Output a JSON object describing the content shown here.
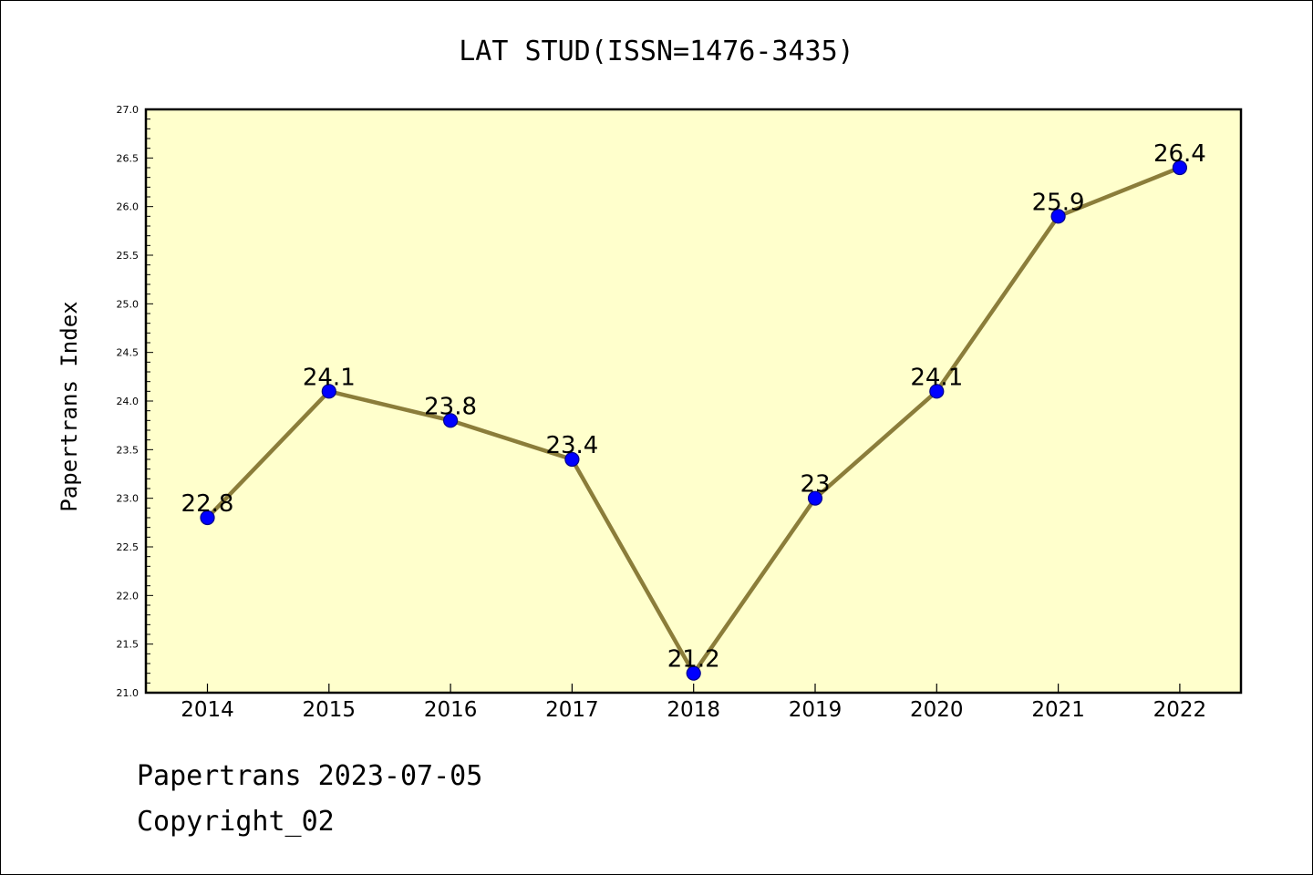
{
  "chart_data": {
    "type": "line",
    "title": "LAT STUD(ISSN=1476-3435)",
    "xlabel": "",
    "ylabel": "Papertrans Index",
    "categories": [
      "2014",
      "2015",
      "2016",
      "2017",
      "2018",
      "2019",
      "2020",
      "2021",
      "2022"
    ],
    "values": [
      22.8,
      24.1,
      23.8,
      23.4,
      21.2,
      23,
      24.1,
      25.9,
      26.4
    ],
    "data_labels": [
      "22.8",
      "24.1",
      "23.8",
      "23.4",
      "21.2",
      "23",
      "24.1",
      "25.9",
      "26.4"
    ],
    "ylim": [
      21.0,
      27.0
    ],
    "yticks": [
      "21.0",
      "21.5",
      "22.0",
      "22.5",
      "23.0",
      "23.5",
      "24.0",
      "24.5",
      "25.0",
      "25.5",
      "26.0",
      "26.5",
      "27.0"
    ],
    "grid": false,
    "legend": "none",
    "colors": {
      "plot_background": "#ffffcc",
      "line": "#8b7d3a",
      "marker": "#0000ff",
      "marker_edge": "#00008b"
    }
  },
  "footer": {
    "date_line": "Papertrans 2023-07-05",
    "copyright_line": "Copyright_02"
  }
}
